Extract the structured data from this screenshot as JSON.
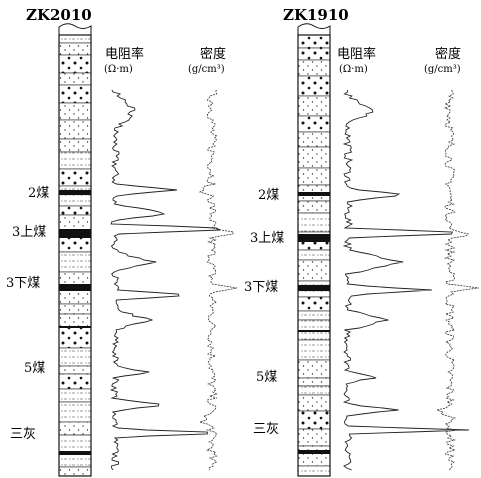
{
  "figure": {
    "wells": [
      {
        "id": "ZK2010",
        "resistivity_label": "电阻率",
        "resistivity_unit": "(Ω·m)",
        "density_label": "密度",
        "density_unit": "(g/cm³)",
        "seams": [
          {
            "label": "2煤",
            "depth": 0.408
          },
          {
            "label": "3上煤",
            "depth": 0.505
          },
          {
            "label": "3下煤",
            "depth": 0.605
          },
          {
            "label": "5煤",
            "depth": 0.79
          },
          {
            "label": "三灰",
            "depth": 0.913
          }
        ]
      },
      {
        "id": "ZK1910",
        "resistivity_label": "电阻率",
        "resistivity_unit": "(Ω·m)",
        "density_label": "密度",
        "density_unit": "(g/cm³)",
        "seams": [
          {
            "label": "2煤",
            "depth": 0.41
          },
          {
            "label": "3上煤",
            "depth": 0.51
          },
          {
            "label": "3下煤",
            "depth": 0.61
          },
          {
            "label": "5煤",
            "depth": 0.806
          },
          {
            "label": "三灰",
            "depth": 0.913
          }
        ]
      }
    ]
  }
}
